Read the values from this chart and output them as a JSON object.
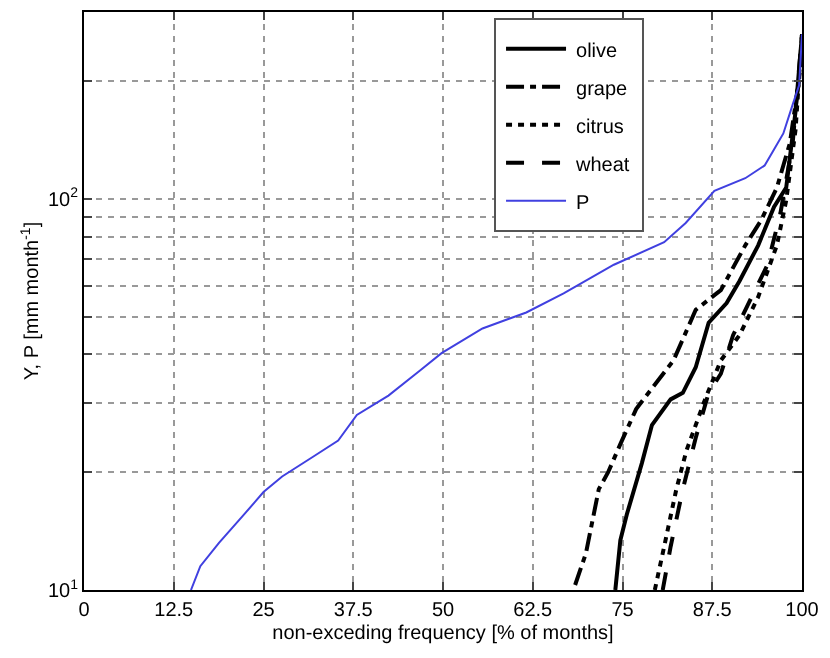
{
  "chart_data": {
    "type": "line",
    "xlabel": "non-exceding frequency [% of months]",
    "ylabel": "Y, P [mm month$^{-1}$]",
    "log": "y",
    "grid": true,
    "legend": "top right",
    "marker": "none",
    "xlim": [
      0,
      100
    ],
    "xticks": [
      0,
      12.5,
      25,
      37.5,
      50,
      62.5,
      75,
      87.5,
      100
    ],
    "ylim": [
      10,
      300
    ],
    "yticks": [
      {
        "value": 10,
        "label": "10$^{1}$"
      },
      {
        "value": 20,
        "label": null
      },
      {
        "value": 30,
        "label": null
      },
      {
        "value": 40,
        "label": null
      },
      {
        "value": 50,
        "label": null
      },
      {
        "value": 60,
        "label": null
      },
      {
        "value": 70,
        "label": null
      },
      {
        "value": 80,
        "label": null
      },
      {
        "value": 90,
        "label": null
      },
      {
        "value": 100,
        "label": "10$^{2}$"
      },
      {
        "value": 200,
        "label": null
      }
    ],
    "series": [
      {
        "name": "olive",
        "color": "#000000",
        "line_style": "solid",
        "x": [
          74.0,
          74.7,
          75.6,
          77.7,
          79.1,
          81.7,
          83.4,
          85.2,
          87.0,
          89.5,
          91.3,
          93.9,
          96.1,
          97.8,
          99.1,
          100
        ],
        "values": [
          10,
          13.4,
          15.6,
          21.1,
          26.4,
          30.7,
          31.9,
          37.1,
          48.2,
          54.1,
          61.6,
          76.0,
          95.3,
          106.7,
          167,
          263
        ]
      },
      {
        "name": "grape",
        "color": "#000000",
        "line_style": "dashdot",
        "x": [
          68.4,
          69.9,
          71.7,
          73.0,
          74.7,
          76.9,
          80.0,
          82.1,
          85.2,
          88.7,
          92.1,
          94.3,
          96.5,
          98.3,
          99.6,
          100
        ],
        "values": [
          10.3,
          12.4,
          18.1,
          20.0,
          23.6,
          29.0,
          34.4,
          38.6,
          52.0,
          58.4,
          76.0,
          88.0,
          106.7,
          138.5,
          201,
          263
        ]
      },
      {
        "name": "citrus",
        "color": "#000000",
        "line_style": "dotted",
        "x": [
          79.5,
          80.8,
          82.5,
          83.9,
          86.5,
          88.7,
          91.3,
          93.9,
          96.5,
          97.8,
          99.1,
          100
        ],
        "values": [
          10,
          12.9,
          18.1,
          22.7,
          30.7,
          38.6,
          44.8,
          56.1,
          76.0,
          99,
          150,
          263
        ]
      },
      {
        "name": "wheat",
        "color": "#000000",
        "line_style": "dashed",
        "x": [
          80.6,
          81.7,
          83.4,
          85.2,
          87.0,
          88.7,
          90.4,
          93.0,
          95.2,
          97.0,
          98.7,
          100
        ],
        "values": [
          10,
          12.9,
          18.1,
          24.5,
          31.9,
          35.7,
          44.8,
          56.1,
          67.8,
          91.9,
          138.5,
          263
        ]
      },
      {
        "name": "P",
        "color": "#4040e0",
        "line_style": "solid",
        "x": [
          14.9,
          16.2,
          18.8,
          22.3,
          25.0,
          27.6,
          31.9,
          35.4,
          38.0,
          42.4,
          46.8,
          49.8,
          55.5,
          61.6,
          66.8,
          73.8,
          80.8,
          83.8,
          87.8,
          92.1,
          94.8,
          96.1,
          97.4,
          98.7,
          99.6,
          100
        ],
        "values": [
          10,
          11.5,
          13.2,
          15.6,
          17.8,
          19.5,
          21.9,
          24.1,
          28.0,
          31.4,
          36.4,
          40.3,
          46.6,
          51.2,
          57.3,
          67.8,
          77.4,
          86.7,
          104.7,
          112.8,
          121.6,
          133.6,
          146.8,
          174,
          195,
          263
        ]
      }
    ]
  }
}
